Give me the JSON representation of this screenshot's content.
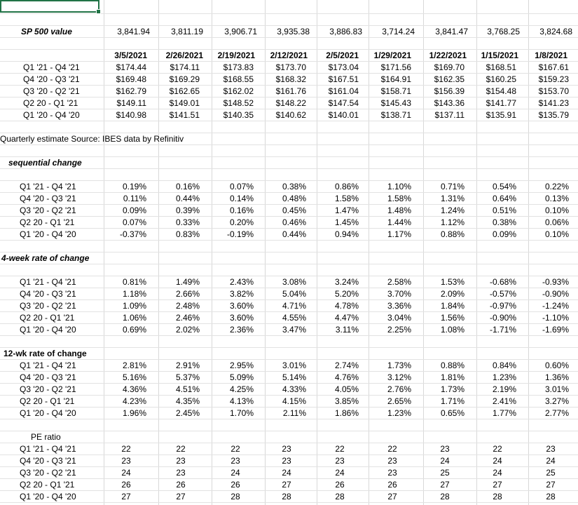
{
  "sp500": {
    "label": "SP 500 value",
    "values": [
      "3,841.94",
      "3,811.19",
      "3,906.71",
      "3,935.38",
      "3,886.83",
      "3,714.24",
      "3,841.47",
      "3,768.25",
      "3,824.68"
    ]
  },
  "dates": [
    "3/5/2021",
    "2/26/2021",
    "2/19/2021",
    "2/12/2021",
    "2/5/2021",
    "1/29/2021",
    "1/22/2021",
    "1/15/2021",
    "1/8/2021"
  ],
  "estimates": {
    "rows": [
      {
        "label": "Q1 '21 - Q4 '21",
        "values": [
          "$174.44",
          "$174.11",
          "$173.83",
          "$173.70",
          "$173.04",
          "$171.56",
          "$169.70",
          "$168.51",
          "$167.61"
        ]
      },
      {
        "label": "Q4 '20 - Q3 '21",
        "values": [
          "$169.48",
          "$169.29",
          "$168.55",
          "$168.32",
          "$167.51",
          "$164.91",
          "$162.35",
          "$160.25",
          "$159.23"
        ]
      },
      {
        "label": "Q3 '20 - Q2 '21",
        "values": [
          "$162.79",
          "$162.65",
          "$162.02",
          "$161.76",
          "$161.04",
          "$158.71",
          "$156.39",
          "$154.48",
          "$153.70"
        ]
      },
      {
        "label": "Q2 20 - Q1 '21",
        "values": [
          "$149.11",
          "$149.01",
          "$148.52",
          "$148.22",
          "$147.54",
          "$145.43",
          "$143.36",
          "$141.77",
          "$141.23"
        ]
      },
      {
        "label": "Q1 '20 - Q4 '20",
        "values": [
          "$140.98",
          "$141.51",
          "$140.35",
          "$140.62",
          "$140.01",
          "$138.71",
          "$137.11",
          "$135.91",
          "$135.79"
        ]
      }
    ]
  },
  "source_note": "Quarterly estimate Source: IBES data by Refinitiv",
  "sequential": {
    "title": "sequential change",
    "rows": [
      {
        "label": "Q1 '21 - Q4 '21",
        "values": [
          "0.19%",
          "0.16%",
          "0.07%",
          "0.38%",
          "0.86%",
          "1.10%",
          "0.71%",
          "0.54%",
          "0.22%"
        ]
      },
      {
        "label": "Q4 '20 - Q3 '21",
        "values": [
          "0.11%",
          "0.44%",
          "0.14%",
          "0.48%",
          "1.58%",
          "1.58%",
          "1.31%",
          "0.64%",
          "0.13%"
        ]
      },
      {
        "label": "Q3 '20 - Q2 '21",
        "values": [
          "0.09%",
          "0.39%",
          "0.16%",
          "0.45%",
          "1.47%",
          "1.48%",
          "1.24%",
          "0.51%",
          "0.10%"
        ]
      },
      {
        "label": "Q2 20 - Q1 '21",
        "values": [
          "0.07%",
          "0.33%",
          "0.20%",
          "0.46%",
          "1.45%",
          "1.44%",
          "1.12%",
          "0.38%",
          "0.06%"
        ]
      },
      {
        "label": "Q1 '20 - Q4 '20",
        "values": [
          "-0.37%",
          "0.83%",
          "-0.19%",
          "0.44%",
          "0.94%",
          "1.17%",
          "0.88%",
          "0.09%",
          "0.10%"
        ]
      }
    ]
  },
  "four_week": {
    "title": "4-week rate of change",
    "rows": [
      {
        "label": "Q1 '21 - Q4 '21",
        "values": [
          "0.81%",
          "1.49%",
          "2.43%",
          "3.08%",
          "3.24%",
          "2.58%",
          "1.53%",
          "-0.68%",
          "-0.93%"
        ]
      },
      {
        "label": "Q4 '20 - Q3 '21",
        "values": [
          "1.18%",
          "2.66%",
          "3.82%",
          "5.04%",
          "5.20%",
          "3.70%",
          "2.09%",
          "-0.57%",
          "-0.90%"
        ]
      },
      {
        "label": "Q3 '20 - Q2 '21",
        "values": [
          "1.09%",
          "2.48%",
          "3.60%",
          "4.71%",
          "4.78%",
          "3.36%",
          "1.84%",
          "-0.97%",
          "-1.24%"
        ]
      },
      {
        "label": "Q2 20 - Q1 '21",
        "values": [
          "1.06%",
          "2.46%",
          "3.60%",
          "4.55%",
          "4.47%",
          "3.04%",
          "1.56%",
          "-0.90%",
          "-1.10%"
        ]
      },
      {
        "label": "Q1 '20 - Q4 '20",
        "values": [
          "0.69%",
          "2.02%",
          "2.36%",
          "3.47%",
          "3.11%",
          "2.25%",
          "1.08%",
          "-1.71%",
          "-1.69%"
        ]
      }
    ]
  },
  "twelve_week": {
    "title": "12-wk rate of change",
    "rows": [
      {
        "label": "Q1 '21 - Q4 '21",
        "values": [
          "2.81%",
          "2.91%",
          "2.95%",
          "3.01%",
          "2.74%",
          "1.73%",
          "0.88%",
          "0.84%",
          "0.60%"
        ]
      },
      {
        "label": "Q4 '20 - Q3 '21",
        "values": [
          "5.16%",
          "5.37%",
          "5.09%",
          "5.14%",
          "4.76%",
          "3.12%",
          "1.81%",
          "1.23%",
          "1.36%"
        ]
      },
      {
        "label": "Q3 '20 - Q2 '21",
        "values": [
          "4.36%",
          "4.51%",
          "4.25%",
          "4.33%",
          "4.05%",
          "2.76%",
          "1.73%",
          "2.19%",
          "3.01%"
        ]
      },
      {
        "label": "Q2 20 - Q1 '21",
        "values": [
          "4.23%",
          "4.35%",
          "4.13%",
          "4.15%",
          "3.85%",
          "2.65%",
          "1.71%",
          "2.41%",
          "3.27%"
        ]
      },
      {
        "label": "Q1 '20 - Q4 '20",
        "values": [
          "1.96%",
          "2.45%",
          "1.70%",
          "2.11%",
          "1.86%",
          "1.23%",
          "0.65%",
          "1.77%",
          "2.77%"
        ]
      }
    ]
  },
  "pe": {
    "title": "PE ratio",
    "rows": [
      {
        "label": "Q1 '21 - Q4 '21",
        "values": [
          "22",
          "22",
          "22",
          "23",
          "22",
          "22",
          "23",
          "22",
          "23"
        ]
      },
      {
        "label": "Q4 '20 - Q3 '21",
        "values": [
          "23",
          "23",
          "23",
          "23",
          "23",
          "23",
          "24",
          "24",
          "24"
        ]
      },
      {
        "label": "Q3 '20 - Q2 '21",
        "values": [
          "24",
          "23",
          "24",
          "24",
          "24",
          "23",
          "25",
          "24",
          "25"
        ]
      },
      {
        "label": "Q2 20 - Q1 '21",
        "values": [
          "26",
          "26",
          "26",
          "27",
          "26",
          "26",
          "27",
          "27",
          "27"
        ]
      },
      {
        "label": "Q1 '20 - Q4 '20",
        "values": [
          "27",
          "27",
          "28",
          "28",
          "28",
          "27",
          "28",
          "28",
          "28"
        ]
      }
    ]
  }
}
